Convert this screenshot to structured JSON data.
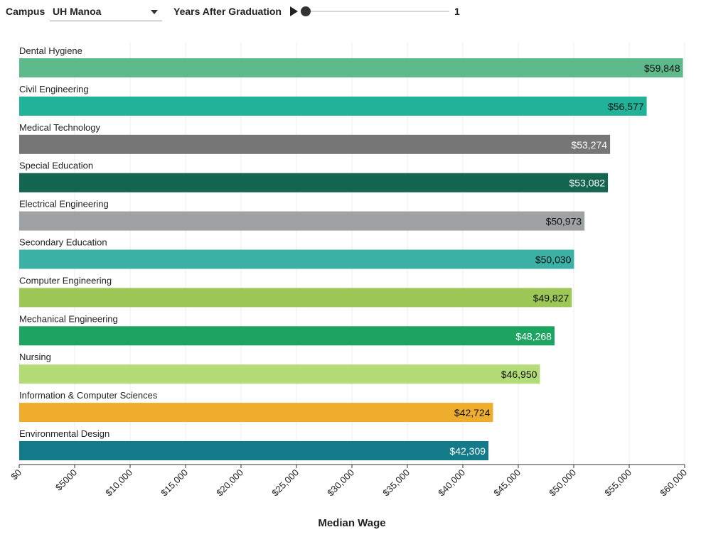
{
  "controls": {
    "campus_label": "Campus",
    "campus_value": "UH Manoa",
    "years_label": "Years After Graduation",
    "years_value": "1",
    "slider_fraction": 0
  },
  "chart_data": {
    "type": "bar",
    "orientation": "horizontal",
    "categories": [
      "Dental Hygiene",
      "Civil Engineering",
      "Medical Technology",
      "Special Education",
      "Electrical Engineering",
      "Secondary Education",
      "Computer Engineering",
      "Mechanical Engineering",
      "Nursing",
      "Information & Computer Sciences",
      "Environmental Design"
    ],
    "values": [
      59848,
      56577,
      53274,
      53082,
      50973,
      50030,
      49827,
      48268,
      46950,
      42724,
      42309
    ],
    "value_labels": [
      "$59,848",
      "$56,577",
      "$53,274",
      "$53,082",
      "$50,973",
      "$50,030",
      "$49,827",
      "$48,268",
      "$46,950",
      "$42,724",
      "$42,309"
    ],
    "colors": [
      "#5eba8a",
      "#21b39a",
      "#767676",
      "#156651",
      "#9fa2a5",
      "#3cb1a6",
      "#9dc757",
      "#1ea461",
      "#b3dc78",
      "#efad2e",
      "#127a88"
    ],
    "label_colors": [
      "#111111",
      "#111111",
      "#ffffff",
      "#ffffff",
      "#111111",
      "#111111",
      "#111111",
      "#ffffff",
      "#111111",
      "#111111",
      "#ffffff"
    ],
    "xlim": [
      0,
      60000
    ],
    "xticks": [
      0,
      5000,
      10000,
      15000,
      20000,
      25000,
      30000,
      35000,
      40000,
      45000,
      50000,
      55000,
      60000
    ],
    "xtick_labels": [
      "$0",
      "$5000",
      "$10,000",
      "$15,000",
      "$20,000",
      "$25,000",
      "$30,000",
      "$35,000",
      "$40,000",
      "$45,000",
      "$50,000",
      "$55,000",
      "$60,000"
    ],
    "xlabel": "Median Wage",
    "ylabel": "",
    "title": "",
    "grid": "vertical"
  }
}
